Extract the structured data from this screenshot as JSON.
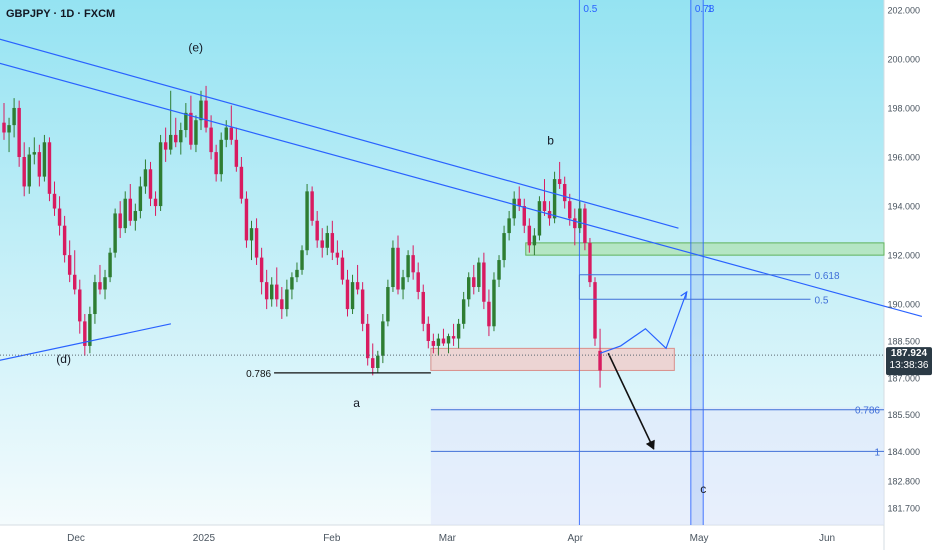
{
  "header": {
    "symbol_label": "GBPJPY · 1D · FXCM"
  },
  "colors": {
    "background_top": "#95e3f2",
    "background_bottom": "#f4fbfd",
    "bull_candle": "#2e7d32",
    "bear_candle": "#d81b60",
    "trend_line": "#2962ff",
    "fib_line": "#3f6fd8",
    "support_zone": "#a9df9a",
    "resistance_zone": "#f3c9c6",
    "price_badge": "#2b3a45"
  },
  "price_badge": {
    "price": "187.924",
    "countdown": "13:38:36"
  },
  "chart_data": {
    "type": "candlestick",
    "title": "GBPJPY · 1D · FXCM",
    "xlabel": "",
    "ylabel": "",
    "ylim": [
      181.0,
      202.4
    ],
    "grid": false,
    "y_ticks": [
      "202.000",
      "200.000",
      "198.000",
      "196.000",
      "194.000",
      "192.000",
      "190.000",
      "188.500",
      "187.000",
      "185.500",
      "184.000",
      "182.800",
      "181.700"
    ],
    "x_ticks": [
      {
        "label": "Dec",
        "date": "2024-12-01"
      },
      {
        "label": "2025",
        "date": "2025-01-01"
      },
      {
        "label": "Feb",
        "date": "2025-02-01"
      },
      {
        "label": "Mar",
        "date": "2025-03-01"
      },
      {
        "label": "Apr",
        "date": "2025-04-01"
      },
      {
        "label": "May",
        "date": "2025-05-01"
      },
      {
        "label": "Jun",
        "date": "2025-06-01"
      }
    ],
    "candles": [
      [
        197.4,
        198.2,
        196.7,
        197.0
      ],
      [
        197.0,
        197.6,
        196.2,
        197.3
      ],
      [
        197.3,
        198.4,
        196.8,
        198.0
      ],
      [
        198.0,
        198.3,
        195.6,
        196.0
      ],
      [
        196.0,
        196.6,
        194.4,
        194.8
      ],
      [
        194.8,
        196.4,
        194.5,
        196.1
      ],
      [
        196.1,
        196.8,
        195.7,
        196.2
      ],
      [
        196.2,
        196.5,
        194.8,
        195.2
      ],
      [
        195.2,
        196.9,
        195.0,
        196.6
      ],
      [
        196.6,
        196.8,
        194.2,
        194.5
      ],
      [
        194.5,
        195.0,
        193.6,
        193.9
      ],
      [
        193.9,
        194.4,
        192.8,
        193.2
      ],
      [
        193.2,
        193.6,
        191.7,
        192.0
      ],
      [
        192.0,
        192.6,
        190.9,
        191.2
      ],
      [
        191.2,
        192.2,
        190.4,
        190.6
      ],
      [
        190.6,
        191.0,
        188.8,
        189.3
      ],
      [
        189.3,
        189.6,
        187.9,
        188.3
      ],
      [
        188.3,
        189.9,
        188.0,
        189.6
      ],
      [
        189.6,
        191.2,
        189.2,
        190.9
      ],
      [
        190.9,
        191.6,
        190.4,
        190.6
      ],
      [
        190.6,
        191.4,
        190.2,
        191.1
      ],
      [
        191.1,
        192.3,
        190.9,
        192.1
      ],
      [
        192.1,
        193.9,
        191.9,
        193.7
      ],
      [
        193.7,
        194.2,
        192.7,
        193.1
      ],
      [
        193.1,
        194.6,
        192.9,
        194.3
      ],
      [
        194.3,
        194.9,
        193.2,
        193.4
      ],
      [
        193.4,
        194.1,
        193.0,
        193.8
      ],
      [
        193.8,
        195.2,
        193.5,
        194.8
      ],
      [
        194.8,
        195.9,
        194.5,
        195.5
      ],
      [
        195.5,
        195.8,
        194.0,
        194.3
      ],
      [
        194.3,
        194.6,
        193.6,
        194.0
      ],
      [
        194.0,
        196.9,
        193.8,
        196.6
      ],
      [
        196.6,
        197.2,
        195.8,
        196.3
      ],
      [
        196.3,
        198.7,
        196.1,
        196.9
      ],
      [
        196.9,
        197.6,
        196.4,
        196.6
      ],
      [
        196.6,
        197.4,
        196.1,
        197.1
      ],
      [
        197.1,
        198.2,
        196.8,
        197.8
      ],
      [
        197.8,
        198.5,
        196.3,
        196.5
      ],
      [
        196.5,
        197.7,
        196.2,
        197.5
      ],
      [
        197.5,
        198.7,
        197.1,
        198.3
      ],
      [
        198.3,
        198.9,
        197.0,
        197.2
      ],
      [
        197.2,
        197.7,
        195.9,
        196.2
      ],
      [
        196.2,
        196.5,
        195.0,
        195.3
      ],
      [
        195.3,
        197.0,
        195.0,
        196.7
      ],
      [
        196.7,
        197.5,
        196.4,
        197.2
      ],
      [
        197.2,
        198.1,
        196.5,
        196.7
      ],
      [
        196.7,
        197.2,
        195.4,
        195.6
      ],
      [
        195.6,
        196.0,
        194.1,
        194.3
      ],
      [
        194.3,
        194.6,
        192.3,
        192.6
      ],
      [
        192.6,
        193.4,
        191.8,
        193.1
      ],
      [
        193.1,
        193.5,
        191.6,
        191.9
      ],
      [
        191.9,
        192.3,
        190.4,
        190.9
      ],
      [
        190.9,
        191.4,
        189.8,
        190.2
      ],
      [
        190.2,
        191.1,
        189.9,
        190.8
      ],
      [
        190.8,
        191.5,
        189.9,
        190.2
      ],
      [
        190.2,
        190.7,
        189.4,
        189.8
      ],
      [
        189.8,
        191.0,
        189.5,
        190.6
      ],
      [
        190.6,
        191.3,
        190.2,
        191.1
      ],
      [
        191.1,
        191.7,
        190.9,
        191.4
      ],
      [
        191.4,
        192.4,
        191.2,
        192.2
      ],
      [
        192.2,
        194.9,
        192.0,
        194.6
      ],
      [
        194.6,
        194.8,
        193.2,
        193.4
      ],
      [
        193.4,
        193.8,
        192.3,
        192.6
      ],
      [
        192.6,
        193.1,
        191.9,
        192.3
      ],
      [
        192.3,
        193.2,
        192.0,
        192.9
      ],
      [
        192.9,
        193.4,
        191.8,
        192.1
      ],
      [
        192.1,
        192.6,
        191.6,
        191.9
      ],
      [
        191.9,
        192.2,
        190.8,
        191.0
      ],
      [
        191.0,
        191.4,
        189.5,
        189.8
      ],
      [
        189.8,
        191.2,
        189.6,
        190.9
      ],
      [
        190.9,
        191.6,
        190.4,
        190.6
      ],
      [
        190.6,
        190.9,
        188.9,
        189.2
      ],
      [
        189.2,
        189.6,
        187.5,
        187.8
      ],
      [
        187.8,
        188.4,
        187.1,
        187.4
      ],
      [
        187.4,
        188.1,
        187.2,
        187.9
      ],
      [
        187.9,
        189.6,
        187.6,
        189.3
      ],
      [
        189.3,
        191.0,
        189.1,
        190.7
      ],
      [
        190.7,
        192.6,
        190.5,
        192.3
      ],
      [
        192.3,
        192.8,
        190.4,
        190.6
      ],
      [
        190.6,
        191.4,
        190.2,
        191.1
      ],
      [
        191.1,
        192.2,
        190.9,
        192.0
      ],
      [
        192.0,
        192.4,
        191.0,
        191.3
      ],
      [
        191.3,
        191.7,
        190.2,
        190.5
      ],
      [
        190.5,
        190.8,
        188.9,
        189.2
      ],
      [
        189.2,
        189.5,
        188.2,
        188.5
      ],
      [
        188.5,
        188.8,
        188.0,
        188.3
      ],
      [
        188.3,
        188.8,
        187.9,
        188.6
      ],
      [
        188.6,
        189.0,
        188.3,
        188.4
      ],
      [
        188.4,
        188.8,
        188.0,
        188.7
      ],
      [
        188.7,
        189.2,
        188.3,
        188.6
      ],
      [
        188.6,
        189.4,
        188.2,
        189.2
      ],
      [
        189.2,
        190.5,
        189.0,
        190.2
      ],
      [
        190.2,
        191.3,
        189.9,
        191.1
      ],
      [
        191.1,
        191.6,
        190.4,
        190.7
      ],
      [
        190.7,
        191.9,
        190.5,
        191.7
      ],
      [
        191.7,
        192.1,
        189.8,
        190.1
      ],
      [
        190.1,
        190.6,
        188.7,
        189.1
      ],
      [
        189.1,
        191.3,
        188.9,
        191.0
      ],
      [
        191.0,
        192.0,
        190.7,
        191.8
      ],
      [
        191.8,
        193.2,
        191.5,
        192.9
      ],
      [
        192.9,
        193.8,
        192.6,
        193.5
      ],
      [
        193.5,
        194.6,
        193.2,
        194.3
      ],
      [
        194.3,
        194.8,
        193.8,
        194.0
      ],
      [
        194.0,
        194.3,
        192.9,
        193.2
      ],
      [
        193.2,
        193.5,
        192.1,
        192.4
      ],
      [
        192.4,
        193.1,
        192.0,
        192.8
      ],
      [
        192.8,
        194.4,
        192.6,
        194.2
      ],
      [
        194.2,
        195.1,
        193.6,
        193.8
      ],
      [
        193.8,
        194.2,
        193.2,
        193.5
      ],
      [
        193.5,
        195.4,
        193.3,
        195.1
      ],
      [
        195.1,
        195.8,
        194.7,
        194.9
      ],
      [
        194.9,
        195.2,
        193.9,
        194.2
      ],
      [
        194.2,
        194.5,
        193.2,
        193.5
      ],
      [
        193.5,
        193.9,
        192.4,
        193.1
      ],
      [
        193.1,
        194.2,
        192.9,
        193.9
      ],
      [
        193.9,
        194.1,
        192.2,
        192.5
      ],
      [
        192.5,
        192.7,
        190.7,
        190.9
      ],
      [
        190.9,
        191.1,
        188.3,
        188.6
      ],
      [
        188.1,
        189.0,
        186.6,
        187.3
      ]
    ],
    "trend_lines": [
      {
        "from": [
          "2024-10-18",
          202.0
        ],
        "to": [
          "2025-04-26",
          193.1
        ]
      },
      {
        "from": [
          "2024-10-18",
          201.0
        ],
        "to": [
          "2025-06-24",
          189.5
        ]
      },
      {
        "from": [
          "2024-10-18",
          186.8
        ],
        "to": [
          "2024-12-24",
          189.2
        ]
      }
    ],
    "zones": [
      {
        "type": "resistance",
        "from": "2025-03-20",
        "to": "2025-06-24",
        "low": 192.0,
        "high": 192.5
      },
      {
        "type": "supply",
        "from": "2025-02-25",
        "to": "2025-04-25",
        "low": 187.3,
        "high": 188.2
      },
      {
        "type": "projection",
        "from": "2025-02-25",
        "to": "2025-06-24",
        "low": 181.0,
        "high": 185.8
      }
    ],
    "horizontal_levels": [
      {
        "label": "0.786",
        "value": 187.2,
        "from": "2025-01-18",
        "to": "2025-02-25"
      },
      {
        "label": "0.618",
        "value": 191.2,
        "from": "2025-04-02",
        "to": "2025-05-28"
      },
      {
        "label": "0.5",
        "value": 190.2,
        "from": "2025-04-02",
        "to": "2025-05-28"
      },
      {
        "label": "0.786",
        "value": 185.7,
        "from": "2025-02-25",
        "to": "2025-06-24"
      },
      {
        "label": "1",
        "value": 184.0,
        "from": "2025-02-25",
        "to": "2025-06-24"
      }
    ],
    "vertical_levels": [
      {
        "label": "0.5",
        "date": "2025-04-02"
      },
      {
        "label": "0.78",
        "date": "2025-04-29"
      },
      {
        "label": "1",
        "date": "2025-05-02"
      }
    ],
    "wave_labels": [
      {
        "label": "(e)",
        "date": "2024-12-30",
        "value": 200.3
      },
      {
        "label": "(d)",
        "date": "2024-11-28",
        "value": 187.6
      },
      {
        "label": "a",
        "date": "2025-02-07",
        "value": 185.8
      },
      {
        "label": "b",
        "date": "2025-03-26",
        "value": 196.5
      },
      {
        "label": "c",
        "date": "2025-05-02",
        "value": 182.3
      }
    ],
    "projection_paths": [
      {
        "points": [
          [
            "2025-04-07",
            188.0
          ],
          [
            "2025-04-12",
            188.3
          ],
          [
            "2025-04-18",
            189.0
          ],
          [
            "2025-04-23",
            188.2
          ],
          [
            "2025-04-28",
            190.5
          ]
        ]
      },
      {
        "points": [
          [
            "2025-04-09",
            188.0
          ],
          [
            "2025-04-20",
            184.1
          ]
        ],
        "arrow": true
      }
    ],
    "last_price": 187.924
  }
}
